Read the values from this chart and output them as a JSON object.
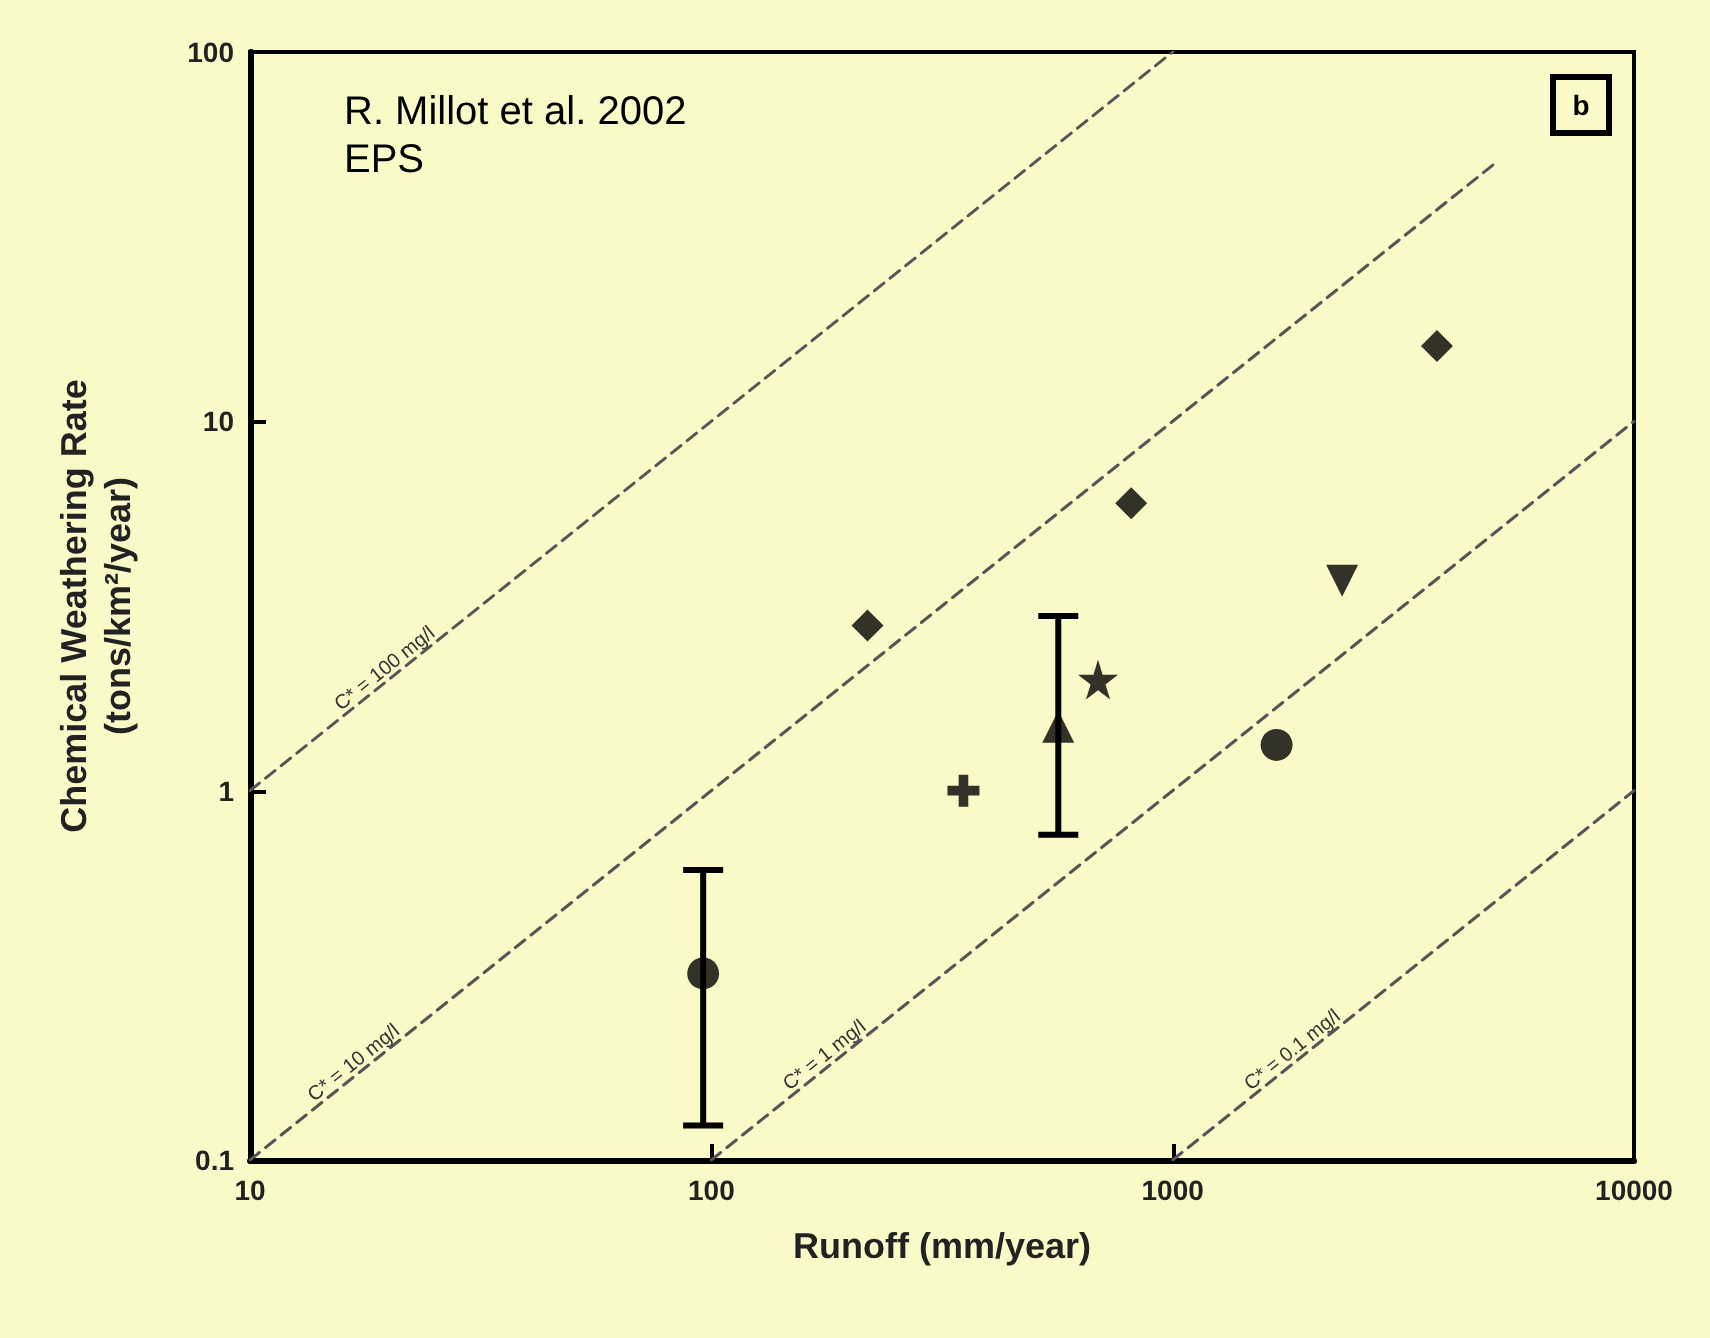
{
  "chart_data": {
    "type": "scatter",
    "xlabel": "Runoff (mm/year)",
    "ylabel": "Chemical Weathering Rate\n(tons/km²/year)",
    "log": "xy",
    "xlim": [
      10,
      10000
    ],
    "ylim": [
      0.1,
      100
    ],
    "xticks": [
      10,
      100,
      1000,
      10000
    ],
    "yticks": [
      0.1,
      1,
      10,
      100
    ],
    "grid": false,
    "series": [
      {
        "type": "line",
        "color": "#555555",
        "line_style": "dashed",
        "marker": "none",
        "x": [
          10,
          1000
        ],
        "values": [
          1,
          100
        ]
      },
      {
        "type": "line",
        "color": "#555555",
        "line_style": "dashed",
        "marker": "none",
        "x": [
          10,
          5000
        ],
        "values": [
          0.1,
          50
        ]
      },
      {
        "type": "line",
        "color": "#555555",
        "line_style": "dashed",
        "marker": "none",
        "x": [
          100,
          10000
        ],
        "values": [
          0.1,
          10
        ]
      },
      {
        "type": "line",
        "color": "#555555",
        "line_style": "dashed",
        "marker": "none",
        "x": [
          1000,
          10000
        ],
        "values": [
          0.1,
          1
        ]
      },
      {
        "color": "#000000",
        "marker": "circle",
        "x": [
          96
        ],
        "values": [
          0.32
        ],
        "errors": [
          [
            0.124,
            0.61
          ]
        ]
      },
      {
        "color": "#000000",
        "marker": "diamond",
        "x": [
          218
        ],
        "values": [
          2.8
        ]
      },
      {
        "color": "#000000",
        "marker": "diamond",
        "x": [
          813
        ],
        "values": [
          6.0
        ]
      },
      {
        "color": "#000000",
        "marker": "diamond",
        "x": [
          3740
        ],
        "values": [
          16
        ]
      },
      {
        "color": "#000000",
        "marker": "triangle-down",
        "x": [
          2330
        ],
        "values": [
          3.7
        ]
      },
      {
        "color": "#000000",
        "marker": "star",
        "x": [
          689
        ],
        "values": [
          2.0
        ]
      },
      {
        "color": "#000000",
        "marker": "triangle",
        "x": [
          565
        ],
        "values": [
          1.49
        ],
        "errors": [
          [
            0.76,
            2.97
          ]
        ]
      },
      {
        "color": "#000000",
        "marker": "cross",
        "x": [
          352
        ],
        "values": [
          1.0
        ]
      },
      {
        "color": "#000000",
        "marker": "circle",
        "x": [
          1680
        ],
        "values": [
          1.33
        ]
      }
    ],
    "annotations": [
      "R. Millot et al. 2002\nEPS",
      "b",
      {
        "text": "C* = 100 mg/l",
        "x": 16,
        "y": 1.6
      },
      {
        "text": "C* = 10 mg/l",
        "x": 14,
        "y": 0.14
      },
      {
        "text": "C* = 1 mg/l",
        "x": 150,
        "y": 0.15
      },
      {
        "text": "C* = 0.1 mg/l",
        "x": 1500,
        "y": 0.15
      }
    ]
  }
}
